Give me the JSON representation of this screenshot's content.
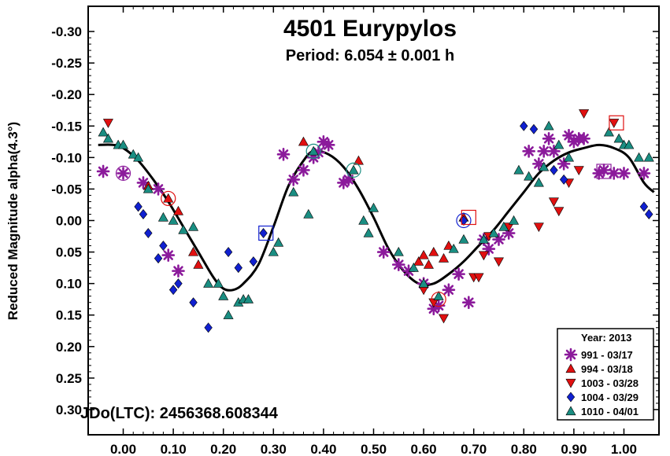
{
  "chart_data": {
    "type": "scatter",
    "title": "4501 Eurypylos",
    "subtitle": "Period: 6.054 ± 0.001 h",
    "ylabel": "Reduced Magnitude alpha(4.3°)",
    "annotation": "JDo(LTC): 2456368.608344",
    "xlim": [
      -0.07,
      1.07
    ],
    "ylim": [
      -0.34,
      0.34
    ],
    "y_inverted": true,
    "x_ticks": [
      0.0,
      0.1,
      0.2,
      0.3,
      0.4,
      0.5,
      0.6,
      0.7,
      0.8,
      0.9,
      1.0
    ],
    "x_tick_labels": [
      "0.00",
      "0.10",
      "0.20",
      "0.30",
      "0.40",
      "0.50",
      "0.60",
      "0.70",
      "0.80",
      "0.90",
      "1.00"
    ],
    "y_ticks": [
      -0.3,
      -0.25,
      -0.2,
      -0.15,
      -0.1,
      -0.05,
      0.0,
      0.05,
      0.1,
      0.15,
      0.2,
      0.25,
      0.3
    ],
    "y_tick_labels": [
      "-0.30",
      "-0.25",
      "-0.20",
      "-0.15",
      "-0.10",
      "-0.05",
      "0.00",
      "0.05",
      "0.10",
      "0.15",
      "0.20",
      "0.25",
      "0.30"
    ],
    "grid": false,
    "legend": {
      "placement": "bottom-right",
      "title": "Year: 2013"
    },
    "series": [
      {
        "name": "991 - 03/17",
        "marker": "asterisk",
        "color": "#8b1a9b",
        "points": [
          [
            -0.04,
            -0.078
          ],
          [
            0.0,
            -0.075
          ],
          [
            0.04,
            -0.06
          ],
          [
            0.07,
            -0.05
          ],
          [
            0.09,
            0.055
          ],
          [
            0.11,
            0.08
          ],
          [
            0.32,
            -0.105
          ],
          [
            0.34,
            -0.065
          ],
          [
            0.36,
            -0.08
          ],
          [
            0.38,
            -0.1
          ],
          [
            0.39,
            -0.108
          ],
          [
            0.4,
            -0.125
          ],
          [
            0.41,
            -0.12
          ],
          [
            0.44,
            -0.06
          ],
          [
            0.45,
            -0.065
          ],
          [
            0.52,
            0.05
          ],
          [
            0.55,
            0.07
          ],
          [
            0.57,
            0.08
          ],
          [
            0.6,
            0.1
          ],
          [
            0.62,
            0.14
          ],
          [
            0.63,
            0.135
          ],
          [
            0.65,
            0.11
          ],
          [
            0.67,
            0.085
          ],
          [
            0.69,
            0.13
          ],
          [
            0.72,
            0.03
          ],
          [
            0.73,
            0.045
          ],
          [
            0.75,
            0.03
          ],
          [
            0.77,
            0.02
          ],
          [
            0.81,
            -0.11
          ],
          [
            0.83,
            -0.09
          ],
          [
            0.84,
            -0.11
          ],
          [
            0.85,
            -0.13
          ],
          [
            0.86,
            -0.11
          ],
          [
            0.88,
            -0.09
          ],
          [
            0.89,
            -0.135
          ],
          [
            0.9,
            -0.125
          ],
          [
            0.91,
            -0.13
          ],
          [
            0.92,
            -0.13
          ],
          [
            0.95,
            -0.075
          ],
          [
            0.96,
            -0.08
          ],
          [
            0.98,
            -0.075
          ],
          [
            1.04,
            -0.075
          ],
          [
            1.0,
            -0.075
          ]
        ]
      },
      {
        "name": "994 - 03/18",
        "marker": "triangle-up",
        "color": "#e01010",
        "points": [
          [
            0.05,
            -0.055
          ],
          [
            0.09,
            -0.035
          ],
          [
            0.11,
            -0.015
          ],
          [
            0.14,
            0.05
          ],
          [
            0.15,
            0.07
          ],
          [
            0.36,
            -0.125
          ],
          [
            0.47,
            -0.095
          ],
          [
            0.59,
            0.065
          ],
          [
            0.6,
            0.055
          ],
          [
            0.61,
            0.07
          ],
          [
            0.62,
            0.05
          ],
          [
            0.64,
            0.06
          ],
          [
            0.65,
            0.04
          ],
          [
            0.68,
            -0.005
          ]
        ]
      },
      {
        "name": "1003 - 03/28",
        "marker": "triangle-down",
        "color": "#e01010",
        "points": [
          [
            -0.03,
            -0.155
          ],
          [
            0.6,
            0.11
          ],
          [
            0.62,
            0.13
          ],
          [
            0.64,
            0.155
          ],
          [
            0.7,
            0.09
          ],
          [
            0.71,
            0.09
          ],
          [
            0.72,
            0.055
          ],
          [
            0.73,
            0.025
          ],
          [
            0.75,
            0.065
          ],
          [
            0.77,
            0.01
          ],
          [
            0.83,
            0.01
          ],
          [
            0.86,
            -0.03
          ],
          [
            0.87,
            -0.015
          ],
          [
            0.89,
            -0.06
          ],
          [
            0.91,
            -0.08
          ],
          [
            0.92,
            -0.17
          ],
          [
            0.98,
            -0.155
          ]
        ]
      },
      {
        "name": "1004 - 03/29",
        "marker": "diamond",
        "color": "#1020d0",
        "points": [
          [
            0.03,
            -0.022
          ],
          [
            0.04,
            -0.01
          ],
          [
            0.05,
            0.02
          ],
          [
            0.07,
            0.06
          ],
          [
            0.08,
            0.04
          ],
          [
            0.1,
            0.11
          ],
          [
            0.11,
            0.1
          ],
          [
            0.14,
            0.13
          ],
          [
            0.17,
            0.17
          ],
          [
            0.21,
            0.05
          ],
          [
            0.23,
            0.075
          ],
          [
            0.26,
            0.065
          ],
          [
            0.28,
            0.02
          ],
          [
            0.68,
            0.0
          ],
          [
            0.8,
            -0.15
          ],
          [
            0.82,
            -0.145
          ],
          [
            0.86,
            -0.08
          ],
          [
            0.88,
            -0.065
          ],
          [
            1.04,
            -0.022
          ],
          [
            1.05,
            -0.01
          ]
        ]
      },
      {
        "name": "1010 - 04/01",
        "marker": "triangle-up",
        "color": "#1a8e82",
        "points": [
          [
            -0.04,
            -0.14
          ],
          [
            -0.03,
            -0.13
          ],
          [
            -0.01,
            -0.12
          ],
          [
            0.0,
            -0.12
          ],
          [
            0.02,
            -0.105
          ],
          [
            0.03,
            -0.1
          ],
          [
            0.05,
            -0.05
          ],
          [
            0.08,
            -0.005
          ],
          [
            0.1,
            0.0
          ],
          [
            0.12,
            0.015
          ],
          [
            0.14,
            0.01
          ],
          [
            0.17,
            0.1
          ],
          [
            0.19,
            0.1
          ],
          [
            0.2,
            0.12
          ],
          [
            0.21,
            0.15
          ],
          [
            0.23,
            0.13
          ],
          [
            0.24,
            0.125
          ],
          [
            0.25,
            0.125
          ],
          [
            0.3,
            0.05
          ],
          [
            0.31,
            0.035
          ],
          [
            0.34,
            -0.045
          ],
          [
            0.37,
            -0.01
          ],
          [
            0.38,
            -0.11
          ],
          [
            0.46,
            -0.08
          ],
          [
            0.48,
            0.0
          ],
          [
            0.49,
            0.02
          ],
          [
            0.5,
            -0.02
          ],
          [
            0.55,
            0.05
          ],
          [
            0.58,
            0.075
          ],
          [
            0.6,
            0.1
          ],
          [
            0.63,
            0.12
          ],
          [
            0.66,
            0.045
          ],
          [
            0.68,
            0.03
          ],
          [
            0.72,
            0.03
          ],
          [
            0.74,
            0.02
          ],
          [
            0.76,
            0.01
          ],
          [
            0.78,
            0.0
          ],
          [
            0.79,
            -0.08
          ],
          [
            0.81,
            -0.07
          ],
          [
            0.83,
            -0.06
          ],
          [
            0.84,
            -0.085
          ],
          [
            0.85,
            -0.15
          ],
          [
            0.87,
            -0.12
          ],
          [
            0.89,
            -0.1
          ],
          [
            0.97,
            -0.14
          ],
          [
            0.99,
            -0.13
          ],
          [
            1.0,
            -0.12
          ],
          [
            1.01,
            -0.12
          ],
          [
            1.03,
            -0.1
          ],
          [
            1.05,
            -0.1
          ]
        ]
      }
    ],
    "fit_curve": {
      "name": "Fourier fit",
      "color": "#000000",
      "points": [
        [
          -0.05,
          -0.12
        ],
        [
          -0.02,
          -0.12
        ],
        [
          0.0,
          -0.115
        ],
        [
          0.03,
          -0.095
        ],
        [
          0.06,
          -0.065
        ],
        [
          0.09,
          -0.03
        ],
        [
          0.12,
          0.01
        ],
        [
          0.15,
          0.05
        ],
        [
          0.18,
          0.09
        ],
        [
          0.2,
          0.108
        ],
        [
          0.22,
          0.11
        ],
        [
          0.24,
          0.1
        ],
        [
          0.27,
          0.07
        ],
        [
          0.3,
          0.01
        ],
        [
          0.33,
          -0.055
        ],
        [
          0.36,
          -0.095
        ],
        [
          0.38,
          -0.11
        ],
        [
          0.41,
          -0.105
        ],
        [
          0.44,
          -0.085
        ],
        [
          0.47,
          -0.05
        ],
        [
          0.5,
          -0.005
        ],
        [
          0.53,
          0.045
        ],
        [
          0.56,
          0.08
        ],
        [
          0.59,
          0.1
        ],
        [
          0.62,
          0.1
        ],
        [
          0.65,
          0.085
        ],
        [
          0.68,
          0.065
        ],
        [
          0.71,
          0.04
        ],
        [
          0.74,
          0.015
        ],
        [
          0.77,
          -0.015
        ],
        [
          0.8,
          -0.045
        ],
        [
          0.83,
          -0.075
        ],
        [
          0.86,
          -0.095
        ],
        [
          0.89,
          -0.108
        ],
        [
          0.92,
          -0.115
        ],
        [
          0.95,
          -0.12
        ],
        [
          0.98,
          -0.115
        ],
        [
          1.01,
          -0.1
        ],
        [
          1.04,
          -0.06
        ],
        [
          1.06,
          -0.045
        ]
      ]
    },
    "highlighted_points": [
      {
        "shape": "circle",
        "color": "#8b1a9b",
        "x": 0.0,
        "y": -0.075
      },
      {
        "shape": "circle",
        "color": "#e01010",
        "x": 0.09,
        "y": -0.035
      },
      {
        "shape": "square",
        "color": "#1020d0",
        "x": 0.285,
        "y": 0.02
      },
      {
        "shape": "circle",
        "color": "#1a8e82",
        "x": 0.38,
        "y": -0.11
      },
      {
        "shape": "circle",
        "color": "#1a8e82",
        "x": 0.46,
        "y": -0.08
      },
      {
        "shape": "circle",
        "color": "#e01010",
        "x": 0.63,
        "y": 0.125
      },
      {
        "shape": "circle",
        "color": "#1020d0",
        "x": 0.68,
        "y": 0.0
      },
      {
        "shape": "square",
        "color": "#e01010",
        "x": 0.69,
        "y": -0.005
      },
      {
        "shape": "square",
        "color": "#8b1a9b",
        "x": 0.96,
        "y": -0.078
      },
      {
        "shape": "square",
        "color": "#e01010",
        "x": 0.985,
        "y": -0.155
      }
    ]
  }
}
